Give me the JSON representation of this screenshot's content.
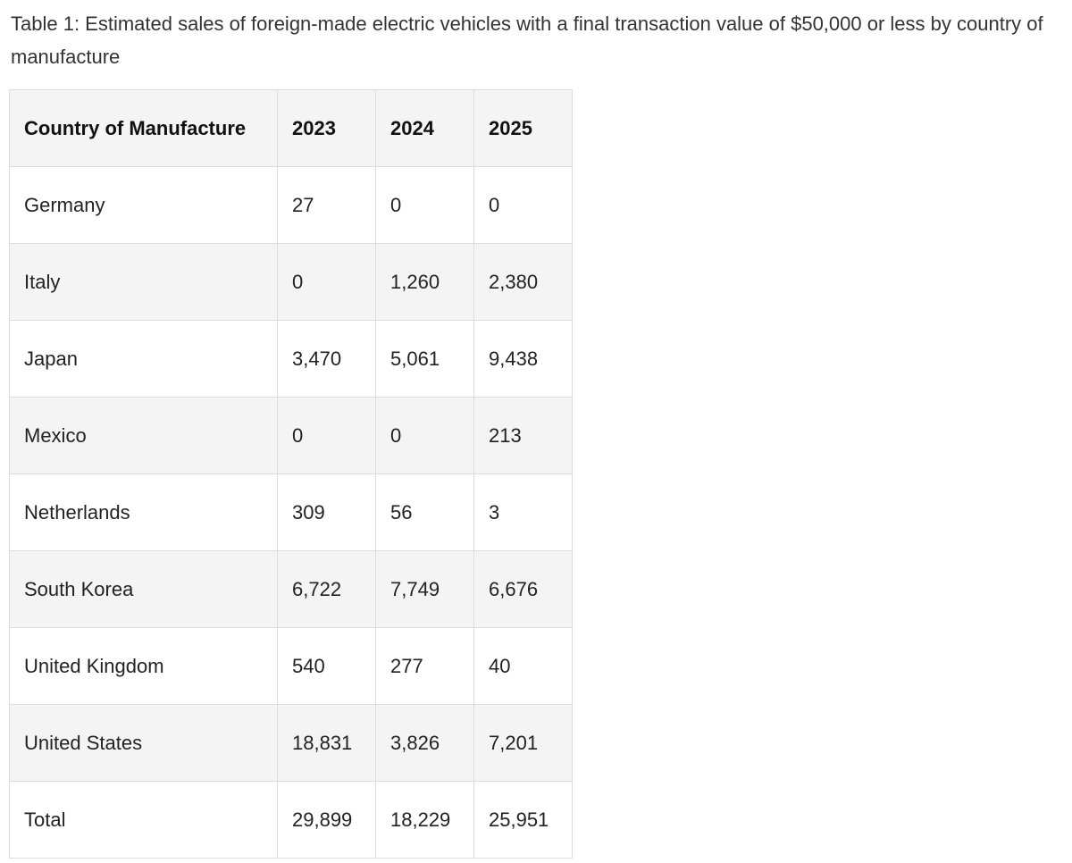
{
  "caption": "Table 1: Estimated sales of foreign-made electric vehicles with a final transaction value of $50,000 or less by country of manufacture",
  "table": {
    "headers": [
      "Country of Manufacture",
      "2023",
      "2024",
      "2025"
    ],
    "rows": [
      [
        "Germany",
        "27",
        "0",
        "0"
      ],
      [
        "Italy",
        "0",
        "1,260",
        "2,380"
      ],
      [
        "Japan",
        "3,470",
        "5,061",
        "9,438"
      ],
      [
        "Mexico",
        "0",
        "0",
        "213"
      ],
      [
        "Netherlands",
        "309",
        "56",
        "3"
      ],
      [
        "South Korea",
        "6,722",
        "7,749",
        "6,676"
      ],
      [
        "United Kingdom",
        "540",
        "277",
        "40"
      ],
      [
        "United States",
        "18,831",
        "3,826",
        "7,201"
      ],
      [
        "Total",
        "29,899",
        "18,229",
        "25,951"
      ]
    ]
  }
}
